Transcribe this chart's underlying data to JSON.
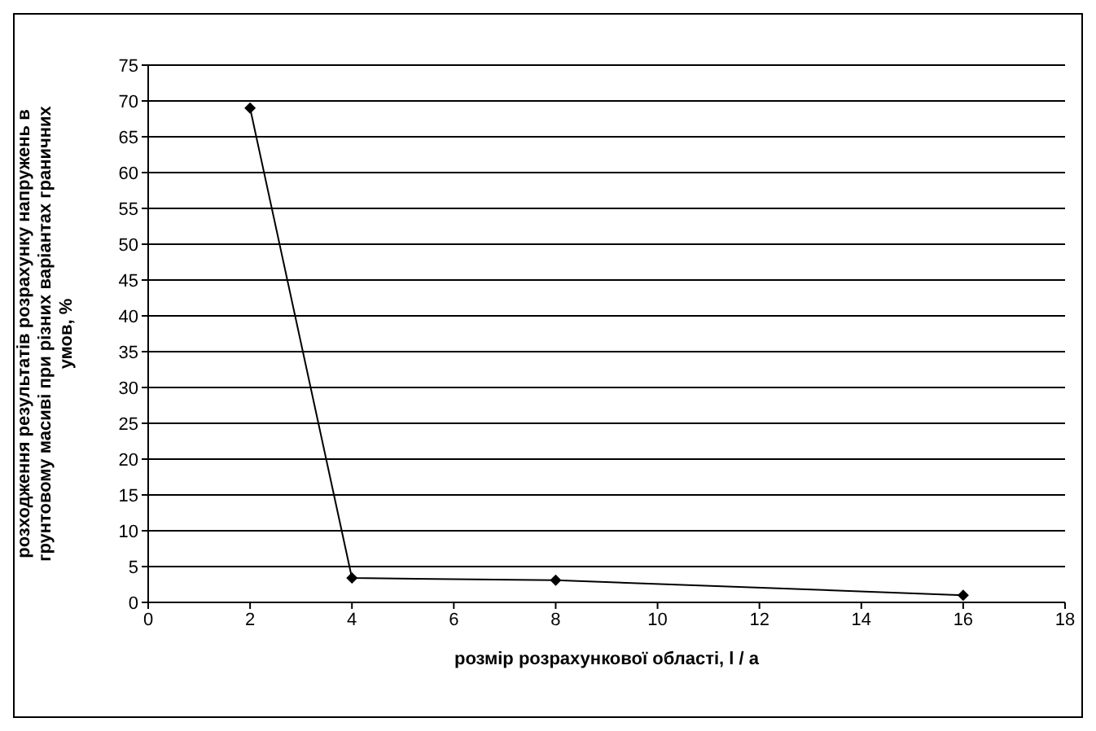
{
  "chart_data": {
    "type": "line",
    "xlabel": "розмір розрахункової області, l / a",
    "ylabel": "розходження результатів розрахунку напружень в грунтовому масиві при різних варіантах граничних умов, %",
    "x": [
      2,
      4,
      8,
      16
    ],
    "series": [
      {
        "color": "#000000",
        "values": [
          69,
          3.4,
          3.1,
          1
        ]
      }
    ],
    "xlim": [
      0,
      18
    ],
    "xticks": [
      0,
      2,
      4,
      6,
      8,
      10,
      12,
      14,
      16,
      18
    ],
    "ylim": [
      0,
      75
    ],
    "yticks": [
      0,
      5,
      10,
      15,
      20,
      25,
      30,
      35,
      40,
      45,
      50,
      55,
      60,
      65,
      70,
      75
    ],
    "grid": "y",
    "legend": false,
    "marker": "diamond",
    "line_style": "solid"
  }
}
